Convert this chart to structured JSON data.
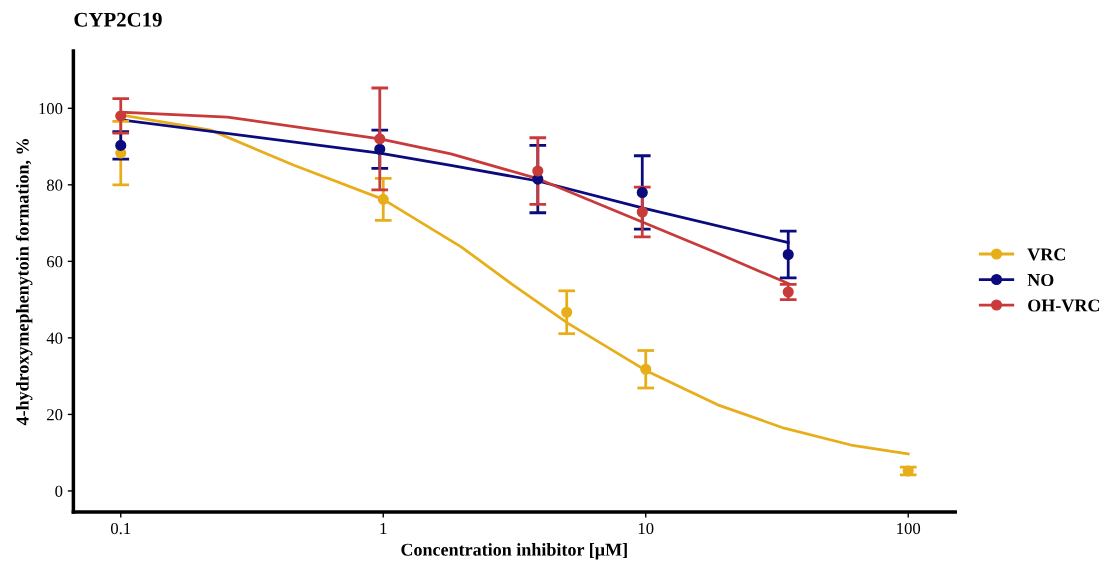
{
  "chart_data": {
    "type": "scatter",
    "title": "CYP2C19",
    "xlabel": "Concentration inhibitor [µM]",
    "ylabel": "4-hydroxymephenytoin formation, %",
    "log": "x",
    "xlim": [
      0.066,
      151
    ],
    "xticks": [
      0.1,
      1,
      10,
      100
    ],
    "ylim": [
      -5.5,
      115
    ],
    "yticks": [
      0,
      20,
      40,
      60,
      80,
      100
    ],
    "grid": false,
    "legend": "right",
    "series": [
      {
        "name": "VRC",
        "marker": "circle",
        "color": "#e8ae1a",
        "x": [
          0.1,
          1,
          5,
          10,
          100
        ],
        "values": [
          88.3,
          76.2,
          46.7,
          31.8,
          5.2
        ],
        "errors": [
          8.3,
          5.5,
          5.6,
          4.9,
          1
        ]
      },
      {
        "name": "NO",
        "marker": "circle",
        "color": "#0b0b7e",
        "x": [
          0.1,
          0.97,
          3.88,
          9.7,
          34.9
        ],
        "values": [
          90.3,
          89.3,
          81.5,
          78.0,
          61.8
        ],
        "errors": [
          3.6,
          5,
          8.8,
          9.6,
          6.1
        ]
      },
      {
        "name": "OH-VRC",
        "marker": "circle",
        "color": "#c93b3b",
        "x": [
          0.1,
          0.97,
          3.88,
          9.7,
          34.9
        ],
        "values": [
          98.0,
          92.0,
          83.6,
          72.9,
          52.0
        ],
        "errors": [
          4.5,
          13.3,
          8.7,
          6.5,
          2.0
        ]
      },
      {
        "type": "line",
        "color": "#e8ae1a",
        "x": [
          0.1,
          0.22,
          0.457,
          1,
          1.98,
          3.07,
          5.06,
          10,
          18.8,
          33.7,
          60.5,
          100
        ],
        "values": [
          98.3,
          94.3,
          85.1,
          76.2,
          63.8,
          54.2,
          43.8,
          31.5,
          22.5,
          16.4,
          12.0,
          9.7
        ]
      },
      {
        "type": "line",
        "color": "#0b0b7e",
        "x": [
          0.1,
          0.97,
          1.81,
          3.88,
          9.7,
          34.9
        ],
        "values": [
          97.0,
          88.3,
          85.1,
          81.0,
          74.0,
          64.9
        ]
      },
      {
        "type": "line",
        "color": "#c93b3b",
        "x": [
          0.1,
          0.255,
          0.97,
          1.81,
          3.88,
          9.7,
          18.8,
          34.9
        ],
        "values": [
          99.0,
          97.7,
          92.0,
          88.1,
          81.6,
          70.3,
          62.1,
          54.2
        ]
      }
    ]
  }
}
